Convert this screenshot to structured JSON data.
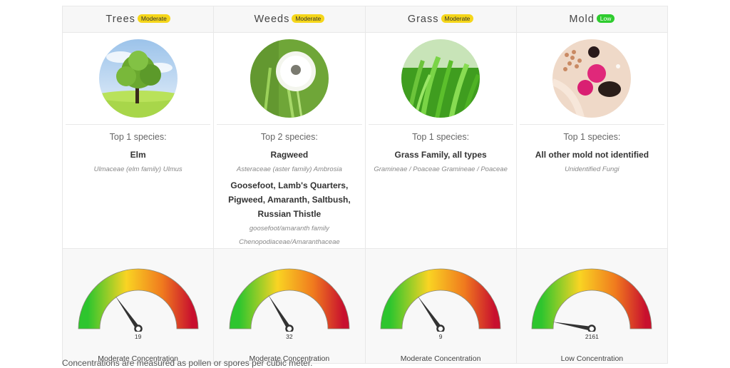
{
  "categories": [
    {
      "name": "Trees",
      "level": "Moderate",
      "level_class": "moderate",
      "image": "tree-image",
      "top_label": "Top 1 species:",
      "species": [
        {
          "name": "Elm",
          "latin": [
            "Ulmaceae (elm family) Ulmus"
          ]
        }
      ],
      "gauge": {
        "value": "19",
        "angle_deg": 125,
        "label": "Moderate Concentration"
      }
    },
    {
      "name": "Weeds",
      "level": "Moderate",
      "level_class": "moderate",
      "image": "dandelion-image",
      "top_label": "Top 2 species:",
      "species": [
        {
          "name": "Ragweed",
          "latin": [
            "Asteraceae (aster family) Ambrosia"
          ]
        },
        {
          "name": "Goosefoot, Lamb's Quarters, Pigweed, Amaranth, Saltbush, Russian Thistle",
          "latin": [
            "goosefoot/amaranth family",
            "Chenopodiaceae/Amaranthaceae"
          ]
        }
      ],
      "gauge": {
        "value": "32",
        "angle_deg": 122,
        "label": "Moderate Concentration"
      }
    },
    {
      "name": "Grass",
      "level": "Moderate",
      "level_class": "moderate",
      "image": "grass-image",
      "top_label": "Top 1 species:",
      "species": [
        {
          "name": "Grass Family, all types",
          "latin": [
            "Gramineae / Poaceae Gramineae / Poaceae"
          ]
        }
      ],
      "gauge": {
        "value": "9",
        "angle_deg": 125,
        "label": "Moderate Concentration"
      }
    },
    {
      "name": "Mold",
      "level": "Low",
      "level_class": "low",
      "image": "mold-image",
      "top_label": "Top 1 species:",
      "species": [
        {
          "name": "All other mold not identified",
          "latin": [
            "Unidentified Fungi"
          ]
        }
      ],
      "gauge": {
        "value": "2161",
        "angle_deg": 170,
        "label": "Low Concentration"
      }
    }
  ],
  "footnote": "Concentrations are measured as pollen or spores per cubic meter.",
  "colors": {
    "moderate": "#f5d61a",
    "low": "#2ecc2e",
    "gauge_green": "#2ec52e",
    "gauge_yellow": "#f9d423",
    "gauge_orange": "#f07a1e",
    "gauge_red": "#c8102e"
  }
}
